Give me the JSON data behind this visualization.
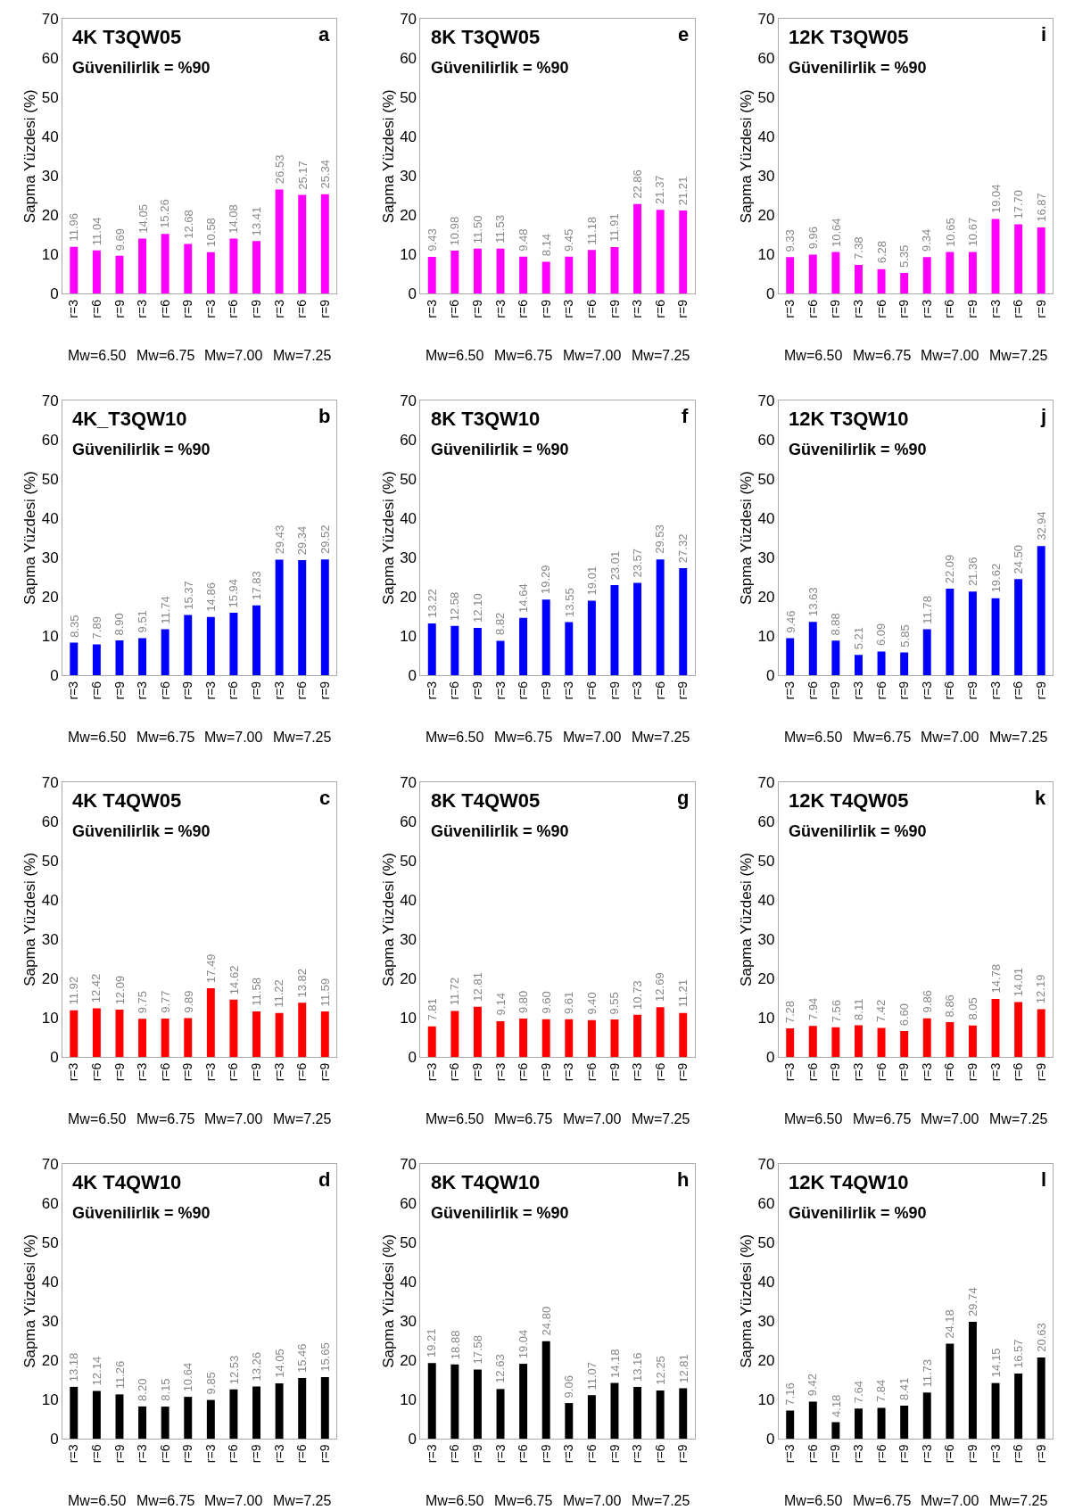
{
  "chart_data": [
    {
      "type": "bar",
      "title": "4K T3QW05",
      "subtitle": "Güvenilirlik = %90",
      "ylabel": "Sapma Yüzdesi (%)",
      "categories": [
        "r=3",
        "r=6",
        "r=9",
        "r=3",
        "r=6",
        "r=9",
        "r=3",
        "r=6",
        "r=9",
        "r=3",
        "r=6",
        "r=9"
      ],
      "color": "#ff00ff",
      "values": [
        11.96,
        11.04,
        9.69,
        14.05,
        15.26,
        12.68,
        10.58,
        14.08,
        13.41,
        26.53,
        25.17,
        25.34
      ],
      "value_labels": [
        "11.96",
        "11.04",
        "9.69",
        "14.05",
        "15.26",
        "12.68",
        "10.58",
        "14.08",
        "13.41",
        "26.53",
        "25.17",
        "25.34"
      ],
      "annotations": [
        "a",
        "Mw=6.50",
        "Mw=6.75",
        "Mw=7.00",
        "Mw=7.25"
      ],
      "ylim": [
        0,
        70
      ],
      "yticks": [
        0,
        10,
        20,
        30,
        40,
        50,
        60,
        70
      ]
    },
    {
      "type": "bar",
      "title": "8K T3QW05",
      "subtitle": "Güvenilirlik = %90",
      "ylabel": "Sapma Yüzdesi (%)",
      "categories": [
        "r=3",
        "r=6",
        "r=9",
        "r=3",
        "r=6",
        "r=9",
        "r=3",
        "r=6",
        "r=9",
        "r=3",
        "r=6",
        "r=9"
      ],
      "color": "#ff00ff",
      "values": [
        9.43,
        10.98,
        11.5,
        11.53,
        9.48,
        8.14,
        9.45,
        11.18,
        11.91,
        22.86,
        21.37,
        21.21
      ],
      "value_labels": [
        "9.43",
        "10.98",
        "11.50",
        "11.53",
        "9.48",
        "8.14",
        "9.45",
        "11.18",
        "11.91",
        "22.86",
        "21.37",
        "21.21"
      ],
      "annotations": [
        "e",
        "Mw=6.50",
        "Mw=6.75",
        "Mw=7.00",
        "Mw=7.25"
      ],
      "ylim": [
        0,
        70
      ],
      "yticks": [
        0,
        10,
        20,
        30,
        40,
        50,
        60,
        70
      ]
    },
    {
      "type": "bar",
      "title": "12K T3QW05",
      "subtitle": "Güvenilirlik = %90",
      "ylabel": "Sapma Yüzdesi (%)",
      "categories": [
        "r=3",
        "r=6",
        "r=9",
        "r=3",
        "r=6",
        "r=9",
        "r=3",
        "r=6",
        "r=9",
        "r=3",
        "r=6",
        "r=9"
      ],
      "color": "#ff00ff",
      "values": [
        9.33,
        9.96,
        10.64,
        7.38,
        6.28,
        5.35,
        9.34,
        10.65,
        10.67,
        19.04,
        17.7,
        16.87
      ],
      "value_labels": [
        "9.33",
        "9.96",
        "10.64",
        "7.38",
        "6.28",
        "5.35",
        "9.34",
        "10.65",
        "10.67",
        "19.04",
        "17.70",
        "16.87"
      ],
      "annotations": [
        "i",
        "Mw=6.50",
        "Mw=6.75",
        "Mw=7.00",
        "Mw=7.25"
      ],
      "ylim": [
        0,
        70
      ],
      "yticks": [
        0,
        10,
        20,
        30,
        40,
        50,
        60,
        70
      ]
    },
    {
      "type": "bar",
      "title": "4K_T3QW10",
      "subtitle": "Güvenilirlik = %90",
      "ylabel": "Sapma Yüzdesi (%)",
      "categories": [
        "r=3",
        "r=6",
        "r=9",
        "r=3",
        "r=6",
        "r=9",
        "r=3",
        "r=6",
        "r=9",
        "r=3",
        "r=6",
        "r=9"
      ],
      "color": "#0000ff",
      "values": [
        8.35,
        7.89,
        8.9,
        9.51,
        11.74,
        15.37,
        14.86,
        15.94,
        17.83,
        29.43,
        29.34,
        29.52
      ],
      "value_labels": [
        "8.35",
        "7.89",
        "8.90",
        "9.51",
        "11.74",
        "15.37",
        "14.86",
        "15.94",
        "17.83",
        "29.43",
        "29.34",
        "29.52"
      ],
      "annotations": [
        "b",
        "Mw=6.50",
        "Mw=6.75",
        "Mw=7.00",
        "Mw=7.25"
      ],
      "ylim": [
        0,
        70
      ],
      "yticks": [
        0,
        10,
        20,
        30,
        40,
        50,
        60,
        70
      ]
    },
    {
      "type": "bar",
      "title": "8K T3QW10",
      "subtitle": "Güvenilirlik = %90",
      "ylabel": "Sapma Yüzdesi (%)",
      "categories": [
        "r=3",
        "r=6",
        "r=9",
        "r=3",
        "r=6",
        "r=9",
        "r=3",
        "r=6",
        "r=9",
        "r=3",
        "r=6",
        "r=9"
      ],
      "color": "#0000ff",
      "values": [
        13.22,
        12.58,
        12.1,
        8.82,
        14.64,
        19.29,
        13.55,
        19.01,
        23.01,
        23.57,
        29.53,
        27.32
      ],
      "value_labels": [
        "13.22",
        "12.58",
        "12.10",
        "8.82",
        "14.64",
        "19.29",
        "13.55",
        "19.01",
        "23.01",
        "23.57",
        "29.53",
        "27.32"
      ],
      "annotations": [
        "f",
        "Mw=6.50",
        "Mw=6.75",
        "Mw=7.00",
        "Mw=7.25"
      ],
      "ylim": [
        0,
        70
      ],
      "yticks": [
        0,
        10,
        20,
        30,
        40,
        50,
        60,
        70
      ]
    },
    {
      "type": "bar",
      "title": "12K T3QW10",
      "subtitle": "Güvenilirlik = %90",
      "ylabel": "Sapma Yüzdesi (%)",
      "categories": [
        "r=3",
        "r=6",
        "r=9",
        "r=3",
        "r=6",
        "r=9",
        "r=3",
        "r=6",
        "r=9",
        "r=3",
        "r=6",
        "r=9"
      ],
      "color": "#0000ff",
      "values": [
        9.46,
        13.63,
        8.88,
        5.21,
        6.09,
        5.85,
        11.78,
        22.09,
        21.36,
        19.62,
        24.5,
        32.94
      ],
      "value_labels": [
        "9.46",
        "13.63",
        "8.88",
        "5.21",
        "6.09",
        "5.85",
        "11.78",
        "22.09",
        "21.36",
        "19.62",
        "24.50",
        "32.94"
      ],
      "annotations": [
        "j",
        "Mw=6.50",
        "Mw=6.75",
        "Mw=7.00",
        "Mw=7.25"
      ],
      "ylim": [
        0,
        70
      ],
      "yticks": [
        0,
        10,
        20,
        30,
        40,
        50,
        60,
        70
      ]
    },
    {
      "type": "bar",
      "title": "4K T4QW05",
      "subtitle": "Güvenilirlik = %90",
      "ylabel": "Sapma Yüzdesi (%)",
      "categories": [
        "r=3",
        "r=6",
        "r=9",
        "r=3",
        "r=6",
        "r=9",
        "r=3",
        "r=6",
        "r=9",
        "r=3",
        "r=6",
        "r=9"
      ],
      "color": "#ff0000",
      "values": [
        11.92,
        12.42,
        12.09,
        9.75,
        9.77,
        9.89,
        17.49,
        14.62,
        11.58,
        11.22,
        13.82,
        11.59
      ],
      "value_labels": [
        "11.92",
        "12.42",
        "12.09",
        "9.75",
        "9.77",
        "9.89",
        "17.49",
        "14.62",
        "11.58",
        "11.22",
        "13.82",
        "11.59"
      ],
      "annotations": [
        "c",
        "Mw=6.50",
        "Mw=6.75",
        "Mw=7.00",
        "Mw=7.25"
      ],
      "ylim": [
        0,
        70
      ],
      "yticks": [
        0,
        10,
        20,
        30,
        40,
        50,
        60,
        70
      ]
    },
    {
      "type": "bar",
      "title": "8K T4QW05",
      "subtitle": "Güvenilirlik = %90",
      "ylabel": "Sapma Yüzdesi (%)",
      "categories": [
        "r=3",
        "r=6",
        "r=9",
        "r=3",
        "r=6",
        "r=9",
        "r=3",
        "r=6",
        "r=9",
        "r=3",
        "r=6",
        "r=9"
      ],
      "color": "#ff0000",
      "values": [
        7.81,
        11.72,
        12.81,
        9.14,
        9.8,
        9.6,
        9.61,
        9.4,
        9.55,
        10.73,
        12.69,
        11.21
      ],
      "value_labels": [
        "7.81",
        "11.72",
        "12.81",
        "9.14",
        "9.80",
        "9.60",
        "9.61",
        "9.40",
        "9.55",
        "10.73",
        "12.69",
        "11.21"
      ],
      "annotations": [
        "g",
        "Mw=6.50",
        "Mw=6.75",
        "Mw=7.00",
        "Mw=7.25"
      ],
      "ylim": [
        0,
        70
      ],
      "yticks": [
        0,
        10,
        20,
        30,
        40,
        50,
        60,
        70
      ]
    },
    {
      "type": "bar",
      "title": "12K T4QW05",
      "subtitle": "Güvenilirlik = %90",
      "ylabel": "Sapma Yüzdesi (%)",
      "categories": [
        "r=3",
        "r=6",
        "r=9",
        "r=3",
        "r=6",
        "r=9",
        "r=3",
        "r=6",
        "r=9",
        "r=3",
        "r=6",
        "r=9"
      ],
      "color": "#ff0000",
      "values": [
        7.28,
        7.94,
        7.56,
        8.11,
        7.42,
        6.6,
        9.86,
        8.86,
        8.05,
        14.78,
        14.01,
        12.19
      ],
      "value_labels": [
        "7.28",
        "7.94",
        "7.56",
        "8.11",
        "7.42",
        "6.60",
        "9.86",
        "8.86",
        "8.05",
        "14.78",
        "14.01",
        "12.19"
      ],
      "annotations": [
        "k",
        "Mw=6.50",
        "Mw=6.75",
        "Mw=7.00",
        "Mw=7.25"
      ],
      "ylim": [
        0,
        70
      ],
      "yticks": [
        0,
        10,
        20,
        30,
        40,
        50,
        60,
        70
      ]
    },
    {
      "type": "bar",
      "title": "4K T4QW10",
      "subtitle": "Güvenilirlik = %90",
      "ylabel": "Sapma Yüzdesi (%)",
      "categories": [
        "r=3",
        "r=6",
        "r=9",
        "r=3",
        "r=6",
        "r=9",
        "r=3",
        "r=6",
        "r=9",
        "r=3",
        "r=6",
        "r=9"
      ],
      "color": "#000000",
      "values": [
        13.18,
        12.14,
        11.26,
        8.2,
        8.15,
        10.64,
        9.85,
        12.53,
        13.26,
        14.05,
        15.46,
        15.65
      ],
      "value_labels": [
        "13.18",
        "12.14",
        "11.26",
        "8.20",
        "8.15",
        "10.64",
        "9.85",
        "12.53",
        "13.26",
        "14.05",
        "15.46",
        "15.65"
      ],
      "annotations": [
        "d",
        "Mw=6.50",
        "Mw=6.75",
        "Mw=7.00",
        "Mw=7.25"
      ],
      "ylim": [
        0,
        70
      ],
      "yticks": [
        0,
        10,
        20,
        30,
        40,
        50,
        60,
        70
      ]
    },
    {
      "type": "bar",
      "title": "8K T4QW10",
      "subtitle": "Güvenilirlik = %90",
      "ylabel": "Sapma Yüzdesi (%)",
      "categories": [
        "r=3",
        "r=6",
        "r=9",
        "r=3",
        "r=6",
        "r=9",
        "r=3",
        "r=6",
        "r=9",
        "r=3",
        "r=6",
        "r=9"
      ],
      "color": "#000000",
      "values": [
        19.21,
        18.88,
        17.58,
        12.63,
        19.04,
        24.8,
        9.06,
        11.07,
        14.18,
        13.16,
        12.25,
        12.81
      ],
      "value_labels": [
        "19.21",
        "18.88",
        "17.58",
        "12.63",
        "19.04",
        "24.80",
        "9.06",
        "11.07",
        "14.18",
        "13.16",
        "12.25",
        "12.81"
      ],
      "annotations": [
        "h",
        "Mw=6.50",
        "Mw=6.75",
        "Mw=7.00",
        "Mw=7.25"
      ],
      "ylim": [
        0,
        70
      ],
      "yticks": [
        0,
        10,
        20,
        30,
        40,
        50,
        60,
        70
      ]
    },
    {
      "type": "bar",
      "title": "12K T4QW10",
      "subtitle": "Güvenilirlik = %90",
      "ylabel": "Sapma Yüzdesi (%)",
      "categories": [
        "r=3",
        "r=6",
        "r=9",
        "r=3",
        "r=6",
        "r=9",
        "r=3",
        "r=6",
        "r=9",
        "r=3",
        "r=6",
        "r=9"
      ],
      "color": "#000000",
      "values": [
        7.16,
        9.42,
        4.18,
        7.64,
        7.84,
        8.41,
        11.73,
        24.18,
        29.74,
        14.15,
        16.57,
        20.63
      ],
      "value_labels": [
        "7.16",
        "9.42",
        "4.18",
        "7.64",
        "7.84",
        "8.41",
        "11.73",
        "24.18",
        "29.74",
        "14.15",
        "16.57",
        "20.63"
      ],
      "annotations": [
        "l",
        "Mw=6.50",
        "Mw=6.75",
        "Mw=7.00",
        "Mw=7.25"
      ],
      "ylim": [
        0,
        70
      ],
      "yticks": [
        0,
        10,
        20,
        30,
        40,
        50,
        60,
        70
      ]
    }
  ]
}
